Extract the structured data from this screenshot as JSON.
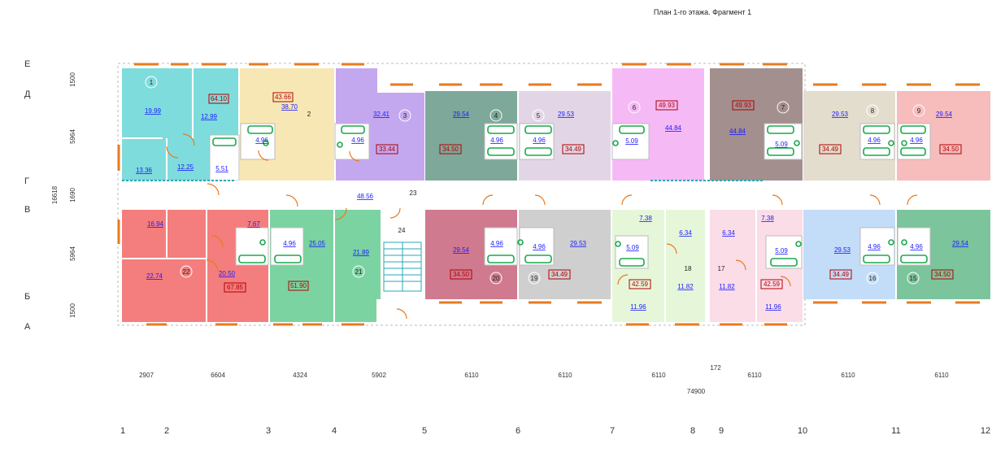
{
  "title": "План 1-го этажа. Фрагмент 1",
  "colors": {
    "cyan": "#7fdcdc",
    "yellow": "#f7e7b4",
    "lavender": "#c4a8ef",
    "darkgreen": "#7ea89a",
    "lightlavender": "#e2d6e6",
    "pink": "#f5b9f5",
    "taupe": "#a38f8e",
    "beige": "#e3ddcd",
    "salmon": "#f7bcbc",
    "red": "#f47d7d",
    "green": "#7cd3a2",
    "rose": "#cf7a8f",
    "gray": "#cfcfcf",
    "lightgreen": "#e6f7d9",
    "lightpink": "#fbdde8",
    "lightblue": "#c3dcf7",
    "medgreen": "#7cc49b",
    "wall": "#9a9a9a",
    "window": "#e87a1e",
    "fixture": "#1aa84c",
    "dashed": "#2aa7b5"
  },
  "axes": {
    "rows": [
      "Е",
      "Д",
      "Г",
      "В",
      "Б",
      "А"
    ],
    "columns": [
      "1",
      "2",
      "3",
      "4",
      "5",
      "6",
      "7",
      "8",
      "9",
      "10",
      "11",
      "12"
    ]
  },
  "row_dims": [
    "1500",
    "5964",
    "16618",
    "1690",
    "5964",
    "1500"
  ],
  "col_dims": [
    "2907",
    "6604",
    "4324",
    "5902",
    "6110",
    "6110",
    "6110",
    "6110",
    "6110",
    "6110"
  ],
  "extra_dims": {
    "gap": "172",
    "total": "74900"
  },
  "room_numbers": [
    "1",
    "2",
    "3",
    "4",
    "5",
    "6",
    "7",
    "8",
    "9",
    "15",
    "16",
    "17",
    "18",
    "19",
    "20",
    "21",
    "22",
    "23",
    "24"
  ],
  "areas": {
    "a1": "19.99",
    "a2": "12.99",
    "a3": "13.36",
    "a4": "12.25",
    "a5": "5.51",
    "a6": "38.70",
    "a7": "4.96",
    "a8": "32.41",
    "a9": "4.96",
    "a10": "48.56",
    "a11": "29.54",
    "a12": "4.96",
    "a13": "29.53",
    "a14": "4.96",
    "a15": "5.09",
    "a16": "44.84",
    "a17": "44.84",
    "a18": "5.09",
    "a19": "29.53",
    "a20": "4.96",
    "a21": "29.54",
    "a22": "4.96",
    "a23": "16.94",
    "a24": "22.74",
    "a25": "20.50",
    "a26": "7.67",
    "a27": "4.96",
    "a28": "25.05",
    "a29": "21.89",
    "a30": "29.54",
    "a31": "4.96",
    "a32": "4.96",
    "a33": "29.53",
    "a34": "7.38",
    "a35": "5.09",
    "a36": "11.96",
    "a37": "6.34",
    "a38": "11.82",
    "a39": "6.34",
    "a40": "7.38",
    "a41": "5.09",
    "a42": "11.82",
    "a43": "11.96",
    "a44": "29.53",
    "a45": "4.96",
    "a46": "4.96",
    "a47": "29.54"
  },
  "totals": {
    "t1": "64.10",
    "t2": "43.66",
    "t3": "33.44",
    "t4": "34.50",
    "t5": "34.49",
    "t6": "49.93",
    "t7": "49.93",
    "t8": "34.49",
    "t9": "34.50",
    "t10": "67.85",
    "t11": "51.90",
    "t12": "34.50",
    "t13": "34.49",
    "t14": "42.59",
    "t15": "42.59",
    "t16": "34.49",
    "t17": "34.50"
  }
}
